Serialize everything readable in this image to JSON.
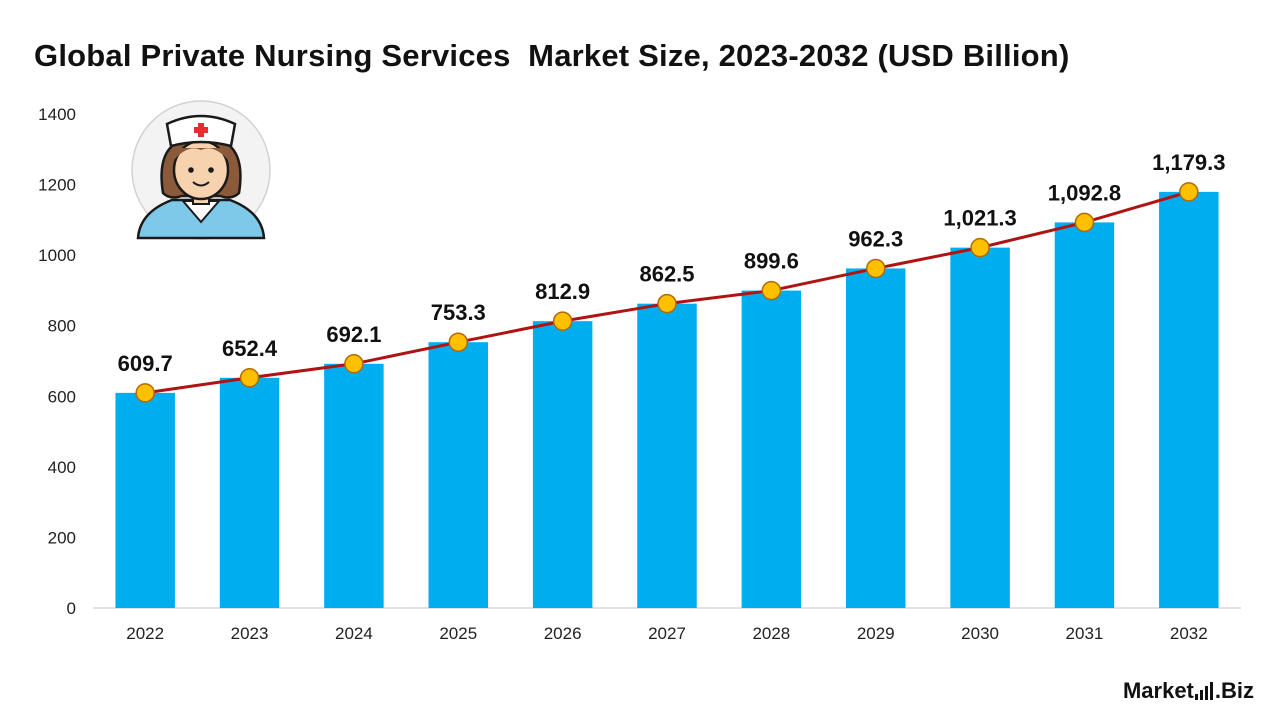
{
  "chart_data": {
    "type": "bar",
    "title": "Global Private Nursing Services  Market Size, 2023-2032 (USD Billion)",
    "xlabel": "",
    "ylabel": "",
    "ylim": [
      0,
      1400
    ],
    "yticks": [
      0,
      200,
      400,
      600,
      800,
      1000,
      1200,
      1400
    ],
    "categories": [
      "2022",
      "2023",
      "2024",
      "2025",
      "2026",
      "2027",
      "2028",
      "2029",
      "2030",
      "2031",
      "2032"
    ],
    "series": [
      {
        "name": "Market Size",
        "values": [
          609.7,
          652.4,
          692.1,
          753.3,
          812.9,
          862.5,
          899.6,
          962.3,
          1021.3,
          1092.8,
          1179.3
        ],
        "labels": [
          "609.7",
          "652.4",
          "692.1",
          "753.3",
          "812.9",
          "862.5",
          "899.6",
          "962.3",
          "1,021.3",
          "1,092.8",
          "1,179.3"
        ]
      }
    ],
    "overlay": "line",
    "grid": false,
    "legend": "none"
  },
  "colors": {
    "bar": "#00aeef",
    "line": "#b01313",
    "marker_fill": "#ffc000",
    "marker_stroke": "#b46a00",
    "axis": "#d9d9d9"
  },
  "icons": {
    "illustration": "nurse-icon"
  },
  "logo": {
    "text_a": "Mark",
    "text_b": "et",
    "text_c": ".Biz"
  }
}
